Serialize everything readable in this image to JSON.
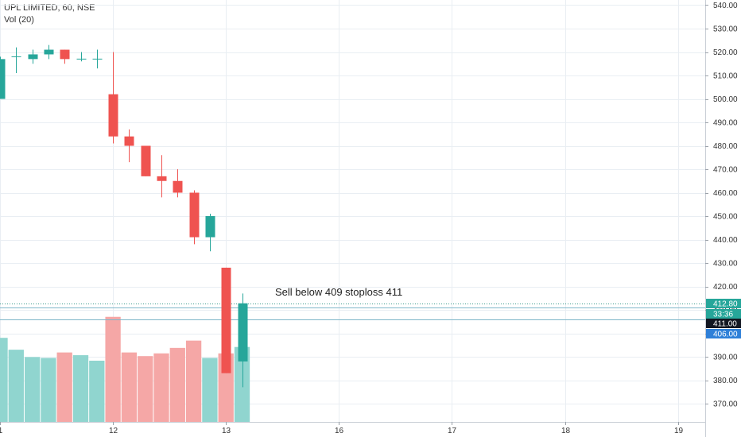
{
  "legend": {
    "title": "UPL LIMITED, 60, NSE",
    "volume_label": "Vol (20)"
  },
  "annotation": {
    "text": "Sell below 409 stoploss 411"
  },
  "colors": {
    "up": "#26a69a",
    "down": "#ef5350",
    "vol_up": "#90d5cf",
    "vol_down": "#f5a7a6",
    "grid": "#e9eef3",
    "ref_line": "#7fb7c9",
    "dotted_line": "#3a9c8c",
    "last_price_tag": "#26a69a",
    "timer_tag": "#26a69a",
    "level_tag": "#131722",
    "target_tag": "#2f80d8"
  },
  "chart_data": {
    "type": "candlestick",
    "title": "UPL LIMITED, 60, NSE",
    "y_axis": {
      "ticks": [
        370,
        380,
        390,
        400,
        410,
        420,
        430,
        440,
        450,
        460,
        470,
        480,
        490,
        500,
        510,
        520,
        530,
        540
      ],
      "tick_labels": [
        "370.00",
        "380.00",
        "390.00",
        "400.00",
        "410.00",
        "420.00",
        "430.00",
        "440.00",
        "450.00",
        "460.00",
        "470.00",
        "480.00",
        "490.00",
        "500.00",
        "510.00",
        "520.00",
        "530.00",
        "540.00"
      ],
      "range": [
        365,
        542
      ]
    },
    "x_axis": {
      "tick_labels": [
        "1",
        "12",
        "13",
        "16",
        "17",
        "18",
        "19"
      ],
      "tick_bar_index": [
        0,
        7,
        14,
        21,
        28,
        35,
        42
      ]
    },
    "candles": [
      {
        "o": 500,
        "h": 518,
        "l": 500,
        "c": 517
      },
      {
        "o": 518,
        "h": 522,
        "l": 511,
        "c": 518
      },
      {
        "o": 517,
        "h": 521,
        "l": 515,
        "c": 519
      },
      {
        "o": 519,
        "h": 523,
        "l": 517,
        "c": 521
      },
      {
        "o": 521,
        "h": 521,
        "l": 515,
        "c": 517
      },
      {
        "o": 517,
        "h": 520,
        "l": 516,
        "c": 517
      },
      {
        "o": 517,
        "h": 521,
        "l": 513,
        "c": 517
      },
      {
        "o": 502,
        "h": 520,
        "l": 481,
        "c": 484
      },
      {
        "o": 484,
        "h": 487,
        "l": 473,
        "c": 480
      },
      {
        "o": 480,
        "h": 480,
        "l": 467,
        "c": 467
      },
      {
        "o": 467,
        "h": 476,
        "l": 458,
        "c": 465
      },
      {
        "o": 465,
        "h": 470,
        "l": 458,
        "c": 460
      },
      {
        "o": 460,
        "h": 461,
        "l": 438,
        "c": 441
      },
      {
        "o": 441,
        "h": 451,
        "l": 435,
        "c": 450
      },
      {
        "o": 428,
        "h": 428,
        "l": 383,
        "c": 383
      },
      {
        "o": 388,
        "h": 417,
        "l": 377,
        "c": 412.8
      }
    ],
    "volume": [
      {
        "value": 92,
        "dir": "up"
      },
      {
        "value": 79,
        "dir": "up"
      },
      {
        "value": 71,
        "dir": "up"
      },
      {
        "value": 70,
        "dir": "up"
      },
      {
        "value": 76,
        "dir": "down"
      },
      {
        "value": 73,
        "dir": "up"
      },
      {
        "value": 67,
        "dir": "up"
      },
      {
        "value": 115,
        "dir": "down"
      },
      {
        "value": 76,
        "dir": "down"
      },
      {
        "value": 72,
        "dir": "down"
      },
      {
        "value": 75,
        "dir": "down"
      },
      {
        "value": 81,
        "dir": "down"
      },
      {
        "value": 89,
        "dir": "down"
      },
      {
        "value": 70,
        "dir": "up"
      },
      {
        "value": 75,
        "dir": "down"
      },
      {
        "value": 82,
        "dir": "up"
      }
    ],
    "price_lines": [
      {
        "value": 412.8,
        "label": "412.80",
        "style": "dotted",
        "tag": "last_price_tag"
      },
      {
        "value": 411,
        "label": "411.00",
        "style": "solid",
        "tag": "level_tag"
      },
      {
        "value": 406,
        "label": "406.00",
        "style": "solid",
        "tag": "target_tag"
      }
    ],
    "timer_label": "33:36"
  }
}
